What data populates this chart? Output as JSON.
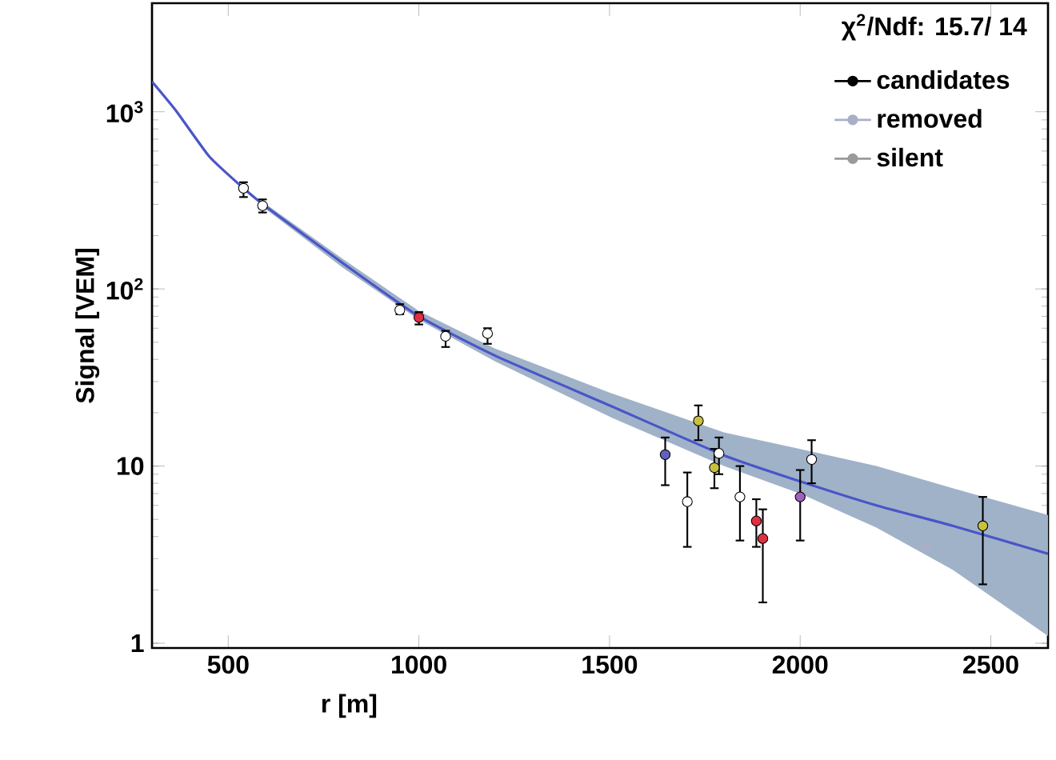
{
  "chart_data": {
    "type": "scatter",
    "xlabel": "r [m]",
    "ylabel": "Signal [VEM]",
    "annotations": [
      "χ$^{2}$/Ndf: 15.7/ 14"
    ],
    "log": "y",
    "xlim": [
      300,
      2650
    ],
    "ylim": [
      0.94,
      4100
    ],
    "xticks": [
      500,
      1000,
      1500,
      2000,
      2500
    ],
    "yticks": [
      1,
      10,
      {
        "value": 100,
        "label": "10$^{2}$"
      },
      {
        "value": 1000,
        "label": "10$^{3}$"
      }
    ],
    "legend": "top right",
    "marker": "circle",
    "grid": false,
    "series": [
      {
        "name": "candidates",
        "color": "#000000",
        "x": [
          540,
          590,
          950,
          1000,
          1070,
          1180,
          1646,
          1704,
          1733,
          1775,
          1787,
          1842,
          1885,
          1902,
          2000,
          2030,
          2479
        ],
        "values": [
          370,
          295,
          76,
          69,
          54,
          56,
          11.6,
          6.3,
          18,
          9.8,
          11.8,
          6.7,
          4.9,
          3.9,
          6.7,
          10.9,
          4.6
        ],
        "colors": [
          "#ffffff",
          "#ffffff",
          "#ffffff",
          "#e03040",
          "#ffffff",
          "#ffffff",
          "#6060c0",
          "#ffffff",
          "#c8c040",
          "#c8c040",
          "#ffffff",
          "#ffffff",
          "#e03040",
          "#e03040",
          "#a060c0",
          "#ffffff",
          "#c8c040"
        ],
        "errors": [
          [
            330,
            400
          ],
          [
            270,
            320
          ],
          [
            72,
            82
          ],
          [
            63,
            74
          ],
          [
            47,
            58
          ],
          [
            49,
            60
          ],
          [
            7.8,
            14.5
          ],
          [
            3.5,
            9.2
          ],
          [
            14,
            22
          ],
          [
            7.5,
            12.5
          ],
          [
            9,
            14.5
          ],
          [
            3.8,
            10
          ],
          [
            3.5,
            6.5
          ],
          [
            1.7,
            5.7
          ],
          [
            3.8,
            9.5
          ],
          [
            8,
            14
          ],
          [
            2.15,
            6.7
          ]
        ]
      },
      {
        "name": "removed",
        "color": "#a8b0c8",
        "x": [
          2330
        ],
        "values": [
          3.5
        ]
      },
      {
        "name": "silent",
        "color": "#9a9a9a"
      },
      {
        "type": "line",
        "marker": "none",
        "color": "#4a55c8",
        "x": [
          300,
          362,
          450,
          540,
          600,
          800,
          1000,
          1200,
          1500,
          1800,
          2000,
          2200,
          2400,
          2650
        ],
        "values": [
          1480,
          1020,
          560,
          370,
          290,
          140,
          70,
          42,
          22,
          11.5,
          8.2,
          6.0,
          4.6,
          3.2
        ],
        "lower": [
          null,
          null,
          null,
          null,
          280,
          132,
          67,
          39,
          19,
          10,
          7.0,
          4.5,
          2.6,
          1.1
        ],
        "upper": [
          null,
          null,
          null,
          null,
          300,
          148,
          75,
          46,
          26,
          15.5,
          12.5,
          10,
          7.5,
          5.3
        ]
      }
    ]
  }
}
